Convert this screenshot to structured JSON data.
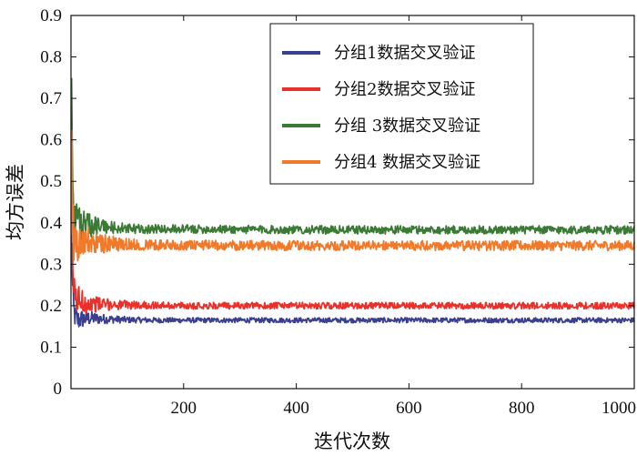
{
  "chart_data": {
    "type": "line",
    "xlabel": "迭代次数",
    "ylabel": "均方误差",
    "xlim": [
      0,
      1000
    ],
    "ylim": [
      0,
      0.9
    ],
    "x_ticks": [
      200,
      400,
      600,
      800,
      1000
    ],
    "x_tick_labels": [
      "200",
      "400",
      "600",
      "800",
      "1000"
    ],
    "y_ticks": [
      0,
      0.1,
      0.2,
      0.3,
      0.4,
      0.5,
      0.6,
      0.7,
      0.8,
      0.9
    ],
    "y_tick_labels": [
      "0",
      "0.1",
      "0.2",
      "0.3",
      "0.4",
      "0.5",
      "0.6",
      "0.7",
      "0.8",
      "0.9"
    ],
    "grid": false,
    "legend_position": "top-right",
    "series": [
      {
        "name": "分组1数据交叉验证",
        "color": "#3a3f8f",
        "noise": 0.006,
        "x": [
          1,
          3,
          5,
          8,
          12,
          20,
          35,
          60,
          100,
          150,
          200,
          400,
          600,
          800,
          1000
        ],
        "y": [
          0.36,
          0.24,
          0.19,
          0.17,
          0.165,
          0.168,
          0.17,
          0.168,
          0.166,
          0.165,
          0.165,
          0.165,
          0.165,
          0.165,
          0.165
        ]
      },
      {
        "name": "分组2数据交叉验证",
        "color": "#e8312b",
        "noise": 0.008,
        "x": [
          1,
          3,
          5,
          8,
          12,
          20,
          35,
          60,
          100,
          150,
          200,
          400,
          600,
          800,
          1000
        ],
        "y": [
          0.6,
          0.3,
          0.24,
          0.22,
          0.215,
          0.21,
          0.205,
          0.203,
          0.202,
          0.201,
          0.2,
          0.2,
          0.2,
          0.2,
          0.2
        ]
      },
      {
        "name": "分组 3数据交叉验证",
        "color": "#3a7a35",
        "noise": 0.01,
        "x": [
          1,
          2,
          4,
          6,
          10,
          15,
          25,
          40,
          60,
          100,
          200,
          400,
          600,
          800,
          1000
        ],
        "y": [
          0.78,
          0.62,
          0.45,
          0.4,
          0.43,
          0.4,
          0.39,
          0.395,
          0.39,
          0.385,
          0.385,
          0.383,
          0.383,
          0.383,
          0.383
        ]
      },
      {
        "name": "分组4 数据交叉验证",
        "color": "#f07a2a",
        "noise": 0.012,
        "x": [
          1,
          3,
          5,
          8,
          12,
          20,
          35,
          60,
          100,
          150,
          200,
          400,
          600,
          800,
          1000
        ],
        "y": [
          0.62,
          0.42,
          0.35,
          0.37,
          0.34,
          0.36,
          0.35,
          0.35,
          0.348,
          0.347,
          0.346,
          0.345,
          0.345,
          0.345,
          0.345
        ]
      }
    ]
  }
}
